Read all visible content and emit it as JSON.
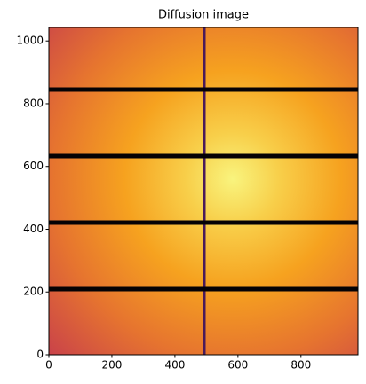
{
  "chart_data": {
    "type": "image",
    "title": "Diffusion image",
    "xlim": [
      0,
      981
    ],
    "ylim": [
      0,
      1043
    ],
    "xticks": [
      0,
      200,
      400,
      600,
      800
    ],
    "yticks": [
      0,
      200,
      400,
      600,
      800,
      1000
    ]
  }
}
